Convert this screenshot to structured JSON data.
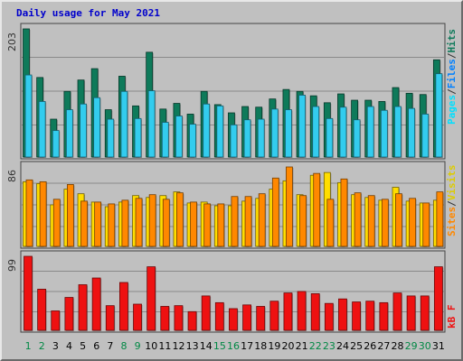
{
  "chart_data": {
    "type": "bar",
    "title": "Daily usage for May 2021",
    "days": [
      "1",
      "2",
      "3",
      "4",
      "5",
      "6",
      "7",
      "8",
      "9",
      "10",
      "11",
      "12",
      "13",
      "14",
      "15",
      "16",
      "17",
      "18",
      "19",
      "20",
      "21",
      "22",
      "23",
      "24",
      "25",
      "26",
      "27",
      "28",
      "29",
      "30",
      "31"
    ],
    "weekend_days": [
      "1",
      "2",
      "8",
      "9",
      "15",
      "16",
      "22",
      "23",
      "29",
      "30"
    ],
    "panels": {
      "hits_files_pages": {
        "max_label": "203",
        "ymax": 203,
        "labels": {
          "pages": "Pages",
          "files": "Files",
          "hits": "Hits",
          "sep": "/"
        },
        "series": {
          "hits": [
            203,
            126,
            60,
            104,
            122,
            140,
            75,
            128,
            81,
            166,
            76,
            85,
            68,
            104,
            83,
            70,
            80,
            79,
            92,
            107,
            104,
            97,
            86,
            100,
            90,
            90,
            88,
            110,
            101,
            99,
            154
          ],
          "files": [
            130,
            88,
            42,
            75,
            84,
            94,
            60,
            104,
            61,
            105,
            55,
            65,
            52,
            84,
            81,
            51,
            59,
            60,
            76,
            75,
            98,
            80,
            61,
            79,
            59,
            80,
            74,
            80,
            77,
            68,
            132
          ],
          "pages": [
            0,
            0,
            0,
            0,
            0,
            0,
            0,
            0,
            0,
            0,
            0,
            0,
            0,
            0,
            0,
            0,
            0,
            0,
            0,
            0,
            0,
            0,
            0,
            0,
            0,
            0,
            0,
            0,
            0,
            0,
            0
          ]
        },
        "colors": {
          "hits": "#0e7a5a",
          "files": "#33ccee",
          "pages": "#00e0ff"
        }
      },
      "visits_sites": {
        "max_label": "86",
        "ymax": 86,
        "labels": {
          "sites": "Sites",
          "visits": "Visits",
          "sep": "/"
        },
        "series": {
          "visits": [
            70,
            68,
            45,
            62,
            57,
            48,
            43,
            48,
            55,
            53,
            55,
            59,
            47,
            48,
            44,
            44,
            49,
            52,
            62,
            71,
            56,
            77,
            80,
            69,
            56,
            53,
            50,
            64,
            49,
            47,
            50
          ],
          "sites": [
            72,
            70,
            51,
            67,
            49,
            48,
            46,
            50,
            52,
            56,
            51,
            58,
            48,
            46,
            46,
            54,
            54,
            57,
            74,
            86,
            55,
            79,
            51,
            73,
            58,
            55,
            51,
            57,
            52,
            47,
            59
          ]
        },
        "colors": {
          "visits": "#ffdd00",
          "sites": "#ff8800"
        }
      },
      "kbytes": {
        "max_label": "99",
        "ymax": 99,
        "labels": {
          "kb": "kB",
          "f": "F"
        },
        "series": {
          "kbytes": [
            99,
            55,
            26,
            44,
            61,
            70,
            33,
            64,
            35,
            85,
            32,
            33,
            25,
            46,
            37,
            29,
            34,
            32,
            39,
            50,
            52,
            49,
            36,
            42,
            38,
            39,
            37,
            50,
            46,
            46,
            85
          ]
        },
        "colors": {
          "kbytes": "#ee1111"
        }
      }
    },
    "colors": {
      "background": "#c0c0c0",
      "plot_border": "#444444",
      "gridline": "#8a8a8a",
      "title": "#0000cc",
      "weekday_tick": "#000000",
      "weekend_tick": "#008844"
    }
  }
}
